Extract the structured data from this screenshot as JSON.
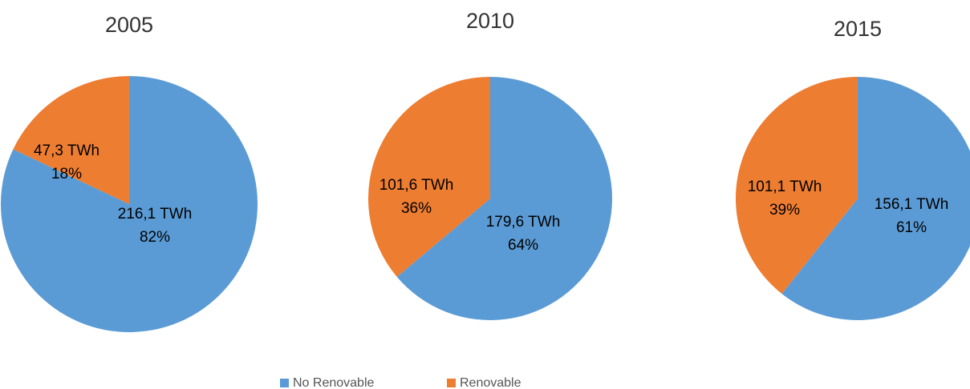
{
  "chart_data": [
    {
      "type": "pie",
      "title": "2005",
      "categories": [
        "No Renovable",
        "Renovable"
      ],
      "colors": [
        "#5b9bd5",
        "#ed7d31"
      ],
      "values": [
        216.1,
        47.3
      ],
      "value_labels": [
        "216,1 TWh",
        "47,3 TWh"
      ],
      "percents": [
        82,
        18
      ],
      "percent_labels": [
        "82%",
        "18%"
      ]
    },
    {
      "type": "pie",
      "title": "2010",
      "categories": [
        "No Renovable",
        "Renovable"
      ],
      "colors": [
        "#5b9bd5",
        "#ed7d31"
      ],
      "values": [
        179.6,
        101.6
      ],
      "value_labels": [
        "179,6 TWh",
        "101,6 TWh"
      ],
      "percents": [
        64,
        36
      ],
      "percent_labels": [
        "64%",
        "36%"
      ]
    },
    {
      "type": "pie",
      "title": "2015",
      "categories": [
        "No Renovable",
        "Renovable"
      ],
      "colors": [
        "#5b9bd5",
        "#ed7d31"
      ],
      "values": [
        156.1,
        101.1
      ],
      "value_labels": [
        "156,1 TWh",
        "101,1 TWh"
      ],
      "percents": [
        61,
        39
      ],
      "percent_labels": [
        "61%",
        "39%"
      ]
    }
  ]
}
